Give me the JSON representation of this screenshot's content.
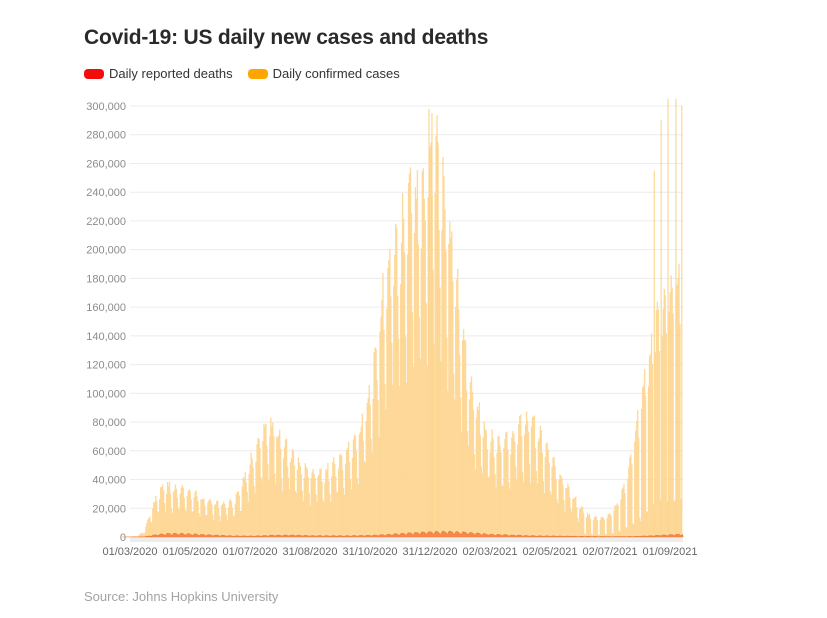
{
  "title": "Covid-19: US daily new cases and deaths",
  "legend": [
    {
      "label": "Daily reported deaths",
      "color": "#f20d0d"
    },
    {
      "label": "Daily confirmed cases",
      "color": "#ffa500"
    }
  ],
  "source": "Source: Johns Hopkins University",
  "chart_data": {
    "type": "area",
    "title": "Covid-19: US daily new cases and deaths",
    "xlabel": "",
    "ylabel": "",
    "ylim": [
      0,
      300000
    ],
    "xlim": [
      "2020-02-22",
      "2021-09-15"
    ],
    "grid": true,
    "legend_position": "top-left",
    "y_ticks": [
      "0",
      "20,000",
      "40,000",
      "60,000",
      "80,000",
      "100,000",
      "120,000",
      "140,000",
      "160,000",
      "180,000",
      "200,000",
      "220,000",
      "240,000",
      "260,000",
      "280,000",
      "300,000"
    ],
    "y_tick_values": [
      0,
      20000,
      40000,
      60000,
      80000,
      100000,
      120000,
      140000,
      160000,
      180000,
      200000,
      220000,
      240000,
      260000,
      280000,
      300000
    ],
    "x_ticks": [
      "01/03/2020",
      "01/05/2020",
      "01/07/2020",
      "31/08/2020",
      "31/10/2020",
      "31/12/2020",
      "02/03/2021",
      "02/05/2021",
      "02/07/2021",
      "01/09/2021"
    ],
    "x_tick_dates": [
      "2020-03-01",
      "2020-05-01",
      "2020-07-01",
      "2020-08-31",
      "2020-10-31",
      "2020-12-31",
      "2021-03-02",
      "2021-05-02",
      "2021-07-02",
      "2021-09-01"
    ],
    "series": [
      {
        "name": "Daily confirmed cases",
        "color": "#ffa500",
        "fill": "#fdd795",
        "x": [
          "2020-02-22",
          "2020-03-08",
          "2020-03-15",
          "2020-03-22",
          "2020-03-29",
          "2020-04-05",
          "2020-04-12",
          "2020-04-19",
          "2020-04-26",
          "2020-05-03",
          "2020-05-10",
          "2020-05-17",
          "2020-05-24",
          "2020-05-31",
          "2020-06-07",
          "2020-06-14",
          "2020-06-21",
          "2020-06-28",
          "2020-07-05",
          "2020-07-12",
          "2020-07-19",
          "2020-07-26",
          "2020-08-02",
          "2020-08-09",
          "2020-08-16",
          "2020-08-23",
          "2020-08-30",
          "2020-09-06",
          "2020-09-13",
          "2020-09-20",
          "2020-09-27",
          "2020-10-04",
          "2020-10-11",
          "2020-10-18",
          "2020-10-25",
          "2020-11-01",
          "2020-11-08",
          "2020-11-15",
          "2020-11-22",
          "2020-11-29",
          "2020-12-06",
          "2020-12-13",
          "2020-12-20",
          "2020-12-27",
          "2021-01-03",
          "2021-01-10",
          "2021-01-17",
          "2021-01-24",
          "2021-01-31",
          "2021-02-07",
          "2021-02-14",
          "2021-02-21",
          "2021-02-28",
          "2021-03-07",
          "2021-03-14",
          "2021-03-21",
          "2021-03-28",
          "2021-04-04",
          "2021-04-11",
          "2021-04-18",
          "2021-04-25",
          "2021-05-02",
          "2021-05-09",
          "2021-05-16",
          "2021-05-23",
          "2021-05-30",
          "2021-06-06",
          "2021-06-13",
          "2021-06-20",
          "2021-06-27",
          "2021-07-04",
          "2021-07-11",
          "2021-07-18",
          "2021-07-25",
          "2021-08-01",
          "2021-08-08",
          "2021-08-15",
          "2021-08-22",
          "2021-08-29",
          "2021-09-05",
          "2021-09-12"
        ],
        "values": [
          0,
          500,
          3000,
          15000,
          25000,
          31000,
          30000,
          29000,
          28000,
          27000,
          24000,
          22000,
          21000,
          20000,
          20000,
          22000,
          28000,
          40000,
          50000,
          62000,
          67000,
          65000,
          58000,
          52000,
          46000,
          42000,
          40000,
          38000,
          37000,
          42000,
          44000,
          48000,
          54000,
          60000,
          72000,
          90000,
          120000,
          155000,
          170000,
          175000,
          195000,
          215000,
          200000,
          205000,
          240000,
          230000,
          190000,
          165000,
          130000,
          100000,
          80000,
          70000,
          62000,
          58000,
          55000,
          58000,
          62000,
          68000,
          70000,
          66000,
          56000,
          48000,
          40000,
          33000,
          27000,
          20000,
          15000,
          12000,
          11000,
          12000,
          15000,
          22000,
          35000,
          55000,
          75000,
          100000,
          120000,
          135000,
          145000,
          150000,
          160000
        ],
        "spikes": [
          {
            "date": "2020-12-30",
            "value": 298000
          },
          {
            "date": "2021-01-02",
            "value": 295000
          },
          {
            "date": "2021-01-08",
            "value": 275000
          },
          {
            "date": "2021-08-16",
            "value": 255000
          },
          {
            "date": "2021-08-23",
            "value": 290000
          },
          {
            "date": "2021-08-30",
            "value": 305000
          },
          {
            "date": "2021-09-07",
            "value": 305000
          },
          {
            "date": "2021-09-13",
            "value": 300000
          },
          {
            "date": "2021-09-15",
            "value": 262000
          }
        ]
      },
      {
        "name": "Daily reported deaths",
        "color": "#f20d0d",
        "fill": "#f5894a",
        "x": [
          "2020-02-22",
          "2020-03-15",
          "2020-03-29",
          "2020-04-12",
          "2020-04-26",
          "2020-05-10",
          "2020-05-24",
          "2020-06-14",
          "2020-07-05",
          "2020-07-26",
          "2020-08-16",
          "2020-09-06",
          "2020-10-04",
          "2020-11-01",
          "2020-11-22",
          "2020-12-13",
          "2021-01-03",
          "2021-01-17",
          "2021-02-07",
          "2021-02-28",
          "2021-03-21",
          "2021-04-18",
          "2021-05-16",
          "2021-06-13",
          "2021-07-04",
          "2021-07-25",
          "2021-08-15",
          "2021-09-05",
          "2021-09-15"
        ],
        "values": [
          0,
          100,
          1500,
          2200,
          2000,
          1600,
          1200,
          700,
          600,
          1100,
          1100,
          800,
          750,
          1000,
          1700,
          2500,
          3100,
          3300,
          2700,
          1800,
          1200,
          700,
          550,
          350,
          250,
          350,
          800,
          1500,
          1700
        ]
      }
    ]
  }
}
